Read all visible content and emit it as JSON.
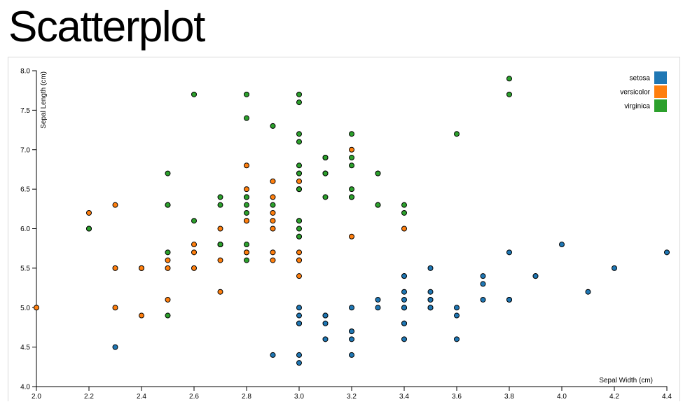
{
  "page": {
    "title": "Scatterplot"
  },
  "chart_data": {
    "type": "scatter",
    "title": "Scatterplot",
    "xlabel": "Sepal Width (cm)",
    "ylabel": "Sepal Length (cm)",
    "xlim": [
      2.0,
      4.4
    ],
    "ylim": [
      4.0,
      8.0
    ],
    "x_ticks": [
      "2.0",
      "2.2",
      "2.4",
      "2.6",
      "2.8",
      "3.0",
      "3.2",
      "3.4",
      "3.6",
      "3.8",
      "4.0",
      "4.2",
      "4.4"
    ],
    "y_ticks": [
      "4.0",
      "4.5",
      "5.0",
      "5.5",
      "6.0",
      "6.5",
      "7.0",
      "7.5",
      "8.0"
    ],
    "grid": false,
    "legend": "top-right",
    "series": [
      {
        "name": "setosa",
        "color": "#1f77b4",
        "points": [
          [
            3.5,
            5.1
          ],
          [
            3.0,
            4.9
          ],
          [
            3.2,
            4.7
          ],
          [
            3.1,
            4.6
          ],
          [
            3.6,
            5.0
          ],
          [
            3.9,
            5.4
          ],
          [
            3.4,
            4.6
          ],
          [
            3.4,
            5.0
          ],
          [
            2.9,
            4.4
          ],
          [
            3.1,
            4.9
          ],
          [
            3.7,
            5.4
          ],
          [
            3.4,
            4.8
          ],
          [
            3.0,
            4.8
          ],
          [
            3.0,
            4.3
          ],
          [
            4.0,
            5.8
          ],
          [
            4.4,
            5.7
          ],
          [
            3.9,
            5.4
          ],
          [
            3.5,
            5.1
          ],
          [
            3.8,
            5.7
          ],
          [
            3.8,
            5.1
          ],
          [
            3.4,
            5.4
          ],
          [
            3.7,
            5.1
          ],
          [
            3.6,
            4.6
          ],
          [
            3.3,
            5.1
          ],
          [
            3.4,
            4.8
          ],
          [
            3.0,
            5.0
          ],
          [
            3.4,
            5.0
          ],
          [
            3.5,
            5.2
          ],
          [
            3.4,
            5.2
          ],
          [
            3.2,
            4.7
          ],
          [
            3.1,
            4.8
          ],
          [
            3.4,
            5.4
          ],
          [
            4.1,
            5.2
          ],
          [
            4.2,
            5.5
          ],
          [
            3.1,
            4.9
          ],
          [
            3.2,
            5.0
          ],
          [
            3.5,
            5.5
          ],
          [
            3.6,
            4.9
          ],
          [
            3.0,
            4.4
          ],
          [
            3.4,
            5.1
          ],
          [
            3.5,
            5.0
          ],
          [
            2.3,
            4.5
          ],
          [
            3.2,
            4.4
          ],
          [
            3.5,
            5.0
          ],
          [
            3.8,
            5.1
          ],
          [
            3.0,
            4.8
          ],
          [
            3.8,
            5.1
          ],
          [
            3.2,
            4.6
          ],
          [
            3.7,
            5.3
          ],
          [
            3.3,
            5.0
          ]
        ]
      },
      {
        "name": "versicolor",
        "color": "#ff7f0e",
        "points": [
          [
            3.2,
            7.0
          ],
          [
            3.2,
            6.4
          ],
          [
            3.1,
            6.9
          ],
          [
            2.3,
            5.5
          ],
          [
            2.8,
            6.5
          ],
          [
            2.8,
            5.7
          ],
          [
            3.3,
            6.3
          ],
          [
            2.4,
            4.9
          ],
          [
            2.9,
            6.6
          ],
          [
            2.7,
            5.2
          ],
          [
            2.0,
            5.0
          ],
          [
            3.0,
            5.9
          ],
          [
            2.2,
            6.0
          ],
          [
            2.9,
            6.1
          ],
          [
            2.9,
            5.6
          ],
          [
            3.1,
            6.7
          ],
          [
            3.0,
            5.6
          ],
          [
            2.7,
            5.8
          ],
          [
            2.2,
            6.2
          ],
          [
            2.5,
            5.6
          ],
          [
            3.2,
            5.9
          ],
          [
            2.8,
            6.1
          ],
          [
            2.5,
            6.3
          ],
          [
            2.8,
            6.1
          ],
          [
            2.9,
            6.4
          ],
          [
            3.0,
            6.6
          ],
          [
            2.8,
            6.8
          ],
          [
            3.0,
            6.7
          ],
          [
            2.9,
            6.0
          ],
          [
            2.6,
            5.7
          ],
          [
            2.4,
            5.5
          ],
          [
            2.4,
            5.5
          ],
          [
            2.7,
            5.8
          ],
          [
            2.7,
            6.0
          ],
          [
            3.0,
            5.4
          ],
          [
            3.4,
            6.0
          ],
          [
            3.1,
            6.7
          ],
          [
            2.3,
            6.3
          ],
          [
            3.0,
            5.6
          ],
          [
            2.5,
            5.5
          ],
          [
            2.6,
            5.5
          ],
          [
            3.0,
            6.1
          ],
          [
            2.6,
            5.8
          ],
          [
            2.3,
            5.0
          ],
          [
            2.7,
            5.6
          ],
          [
            3.0,
            5.7
          ],
          [
            2.9,
            5.7
          ],
          [
            2.9,
            6.2
          ],
          [
            2.5,
            5.1
          ],
          [
            2.8,
            5.7
          ]
        ]
      },
      {
        "name": "virginica",
        "color": "#2ca02c",
        "points": [
          [
            3.3,
            6.3
          ],
          [
            2.7,
            5.8
          ],
          [
            3.0,
            7.1
          ],
          [
            2.9,
            6.3
          ],
          [
            3.0,
            6.5
          ],
          [
            3.0,
            7.6
          ],
          [
            2.5,
            4.9
          ],
          [
            2.9,
            7.3
          ],
          [
            2.5,
            6.7
          ],
          [
            3.6,
            7.2
          ],
          [
            3.2,
            6.5
          ],
          [
            2.7,
            6.4
          ],
          [
            3.0,
            6.8
          ],
          [
            2.5,
            5.7
          ],
          [
            2.8,
            5.8
          ],
          [
            3.2,
            6.4
          ],
          [
            3.0,
            6.5
          ],
          [
            3.8,
            7.7
          ],
          [
            2.6,
            7.7
          ],
          [
            2.2,
            6.0
          ],
          [
            3.2,
            6.9
          ],
          [
            2.8,
            5.6
          ],
          [
            2.8,
            7.7
          ],
          [
            2.7,
            6.3
          ],
          [
            3.3,
            6.7
          ],
          [
            3.2,
            7.2
          ],
          [
            2.8,
            6.2
          ],
          [
            3.0,
            6.1
          ],
          [
            2.8,
            6.4
          ],
          [
            3.0,
            7.2
          ],
          [
            2.8,
            7.4
          ],
          [
            3.8,
            7.9
          ],
          [
            2.8,
            6.4
          ],
          [
            2.8,
            6.3
          ],
          [
            2.6,
            6.1
          ],
          [
            3.0,
            7.7
          ],
          [
            3.4,
            6.3
          ],
          [
            3.1,
            6.4
          ],
          [
            3.0,
            6.0
          ],
          [
            3.1,
            6.9
          ],
          [
            3.1,
            6.7
          ],
          [
            3.1,
            6.9
          ],
          [
            2.7,
            5.8
          ],
          [
            3.2,
            6.8
          ],
          [
            3.3,
            6.7
          ],
          [
            3.0,
            6.7
          ],
          [
            2.5,
            6.3
          ],
          [
            3.0,
            6.5
          ],
          [
            3.4,
            6.2
          ],
          [
            3.0,
            5.9
          ]
        ]
      }
    ]
  }
}
